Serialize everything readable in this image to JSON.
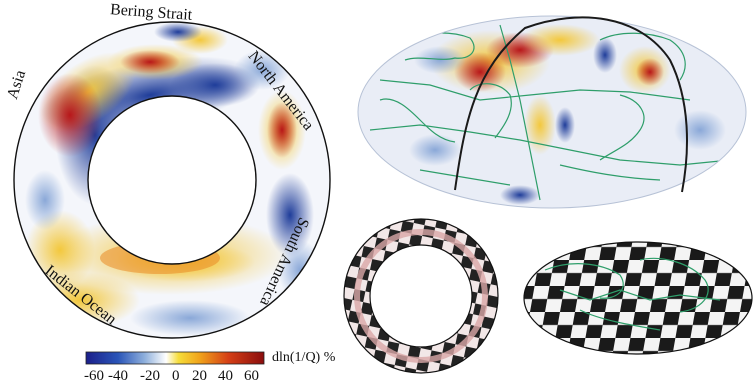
{
  "figure": {
    "cross_section_labels": {
      "asia": "Asia",
      "bering_strait": "Bering Strait",
      "north_america": "North America",
      "south_america": "South America",
      "indian_ocean": "Indian Ocean"
    },
    "colorbar": {
      "label": "dln(1/Q) %",
      "ticks": [
        "-60",
        "-40",
        "-20",
        "0",
        "20",
        "40",
        "60"
      ],
      "colors": [
        "#1b1f8a",
        "#2a55b8",
        "#8fb0dc",
        "#ffffff",
        "#f6dd3a",
        "#f0a21b",
        "#d53f16",
        "#8a0d0d"
      ]
    },
    "colors": {
      "coastline": "#2e9e6a",
      "section_path": "#1a1a1a",
      "checker_dark": "#222222",
      "checker_light": "#f2e7e7"
    }
  }
}
